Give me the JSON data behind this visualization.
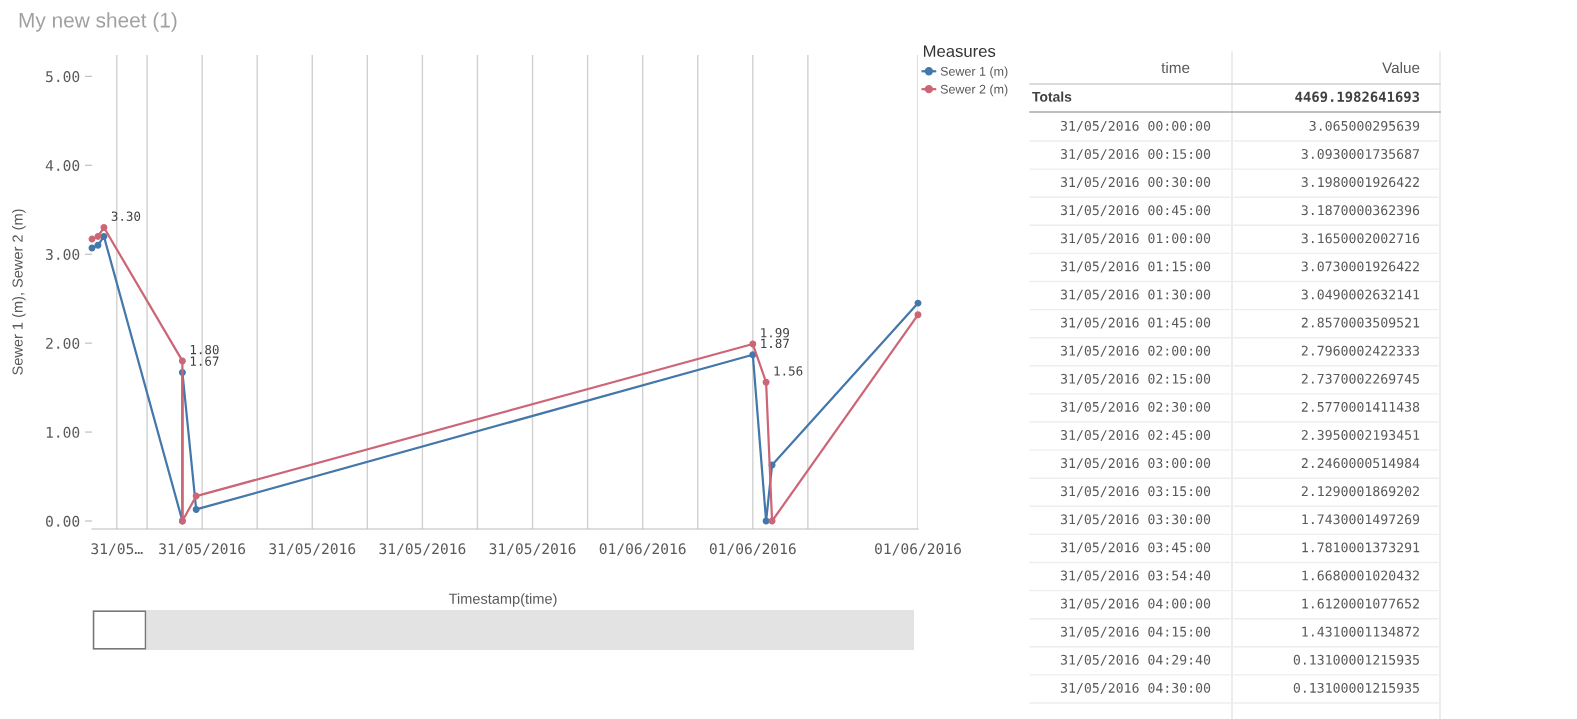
{
  "chart_data": [
    {
      "type": "line",
      "title": "My new sheet (1)",
      "xlabel": "Timestamp(time)",
      "ylabel": "Sewer 1 (m), Sewer 2 (m)",
      "legend_title": "Measures",
      "legend": "top right",
      "grid": "x",
      "marker": "circle",
      "line_style": "solid",
      "xlim": [
        "2016-05-31T04:00",
        "2016-06-01T10:00"
      ],
      "ylim": [
        -0.09,
        5.24
      ],
      "xticks": [
        {
          "value": "2016-05-31T04:54",
          "label": "31/05…"
        },
        {
          "value": "2016-05-31T06:00",
          "label": null
        },
        {
          "value": "2016-05-31T08:00",
          "label": "31/05/2016"
        },
        {
          "value": "2016-05-31T10:00",
          "label": null
        },
        {
          "value": "2016-05-31T12:00",
          "label": "31/05/2016"
        },
        {
          "value": "2016-05-31T14:00",
          "label": null
        },
        {
          "value": "2016-05-31T16:00",
          "label": "31/05/2016"
        },
        {
          "value": "2016-05-31T18:00",
          "label": null
        },
        {
          "value": "2016-05-31T20:00",
          "label": "31/05/2016"
        },
        {
          "value": "2016-05-31T22:00",
          "label": null
        },
        {
          "value": "2016-06-01T00:00",
          "label": "01/06/2016"
        },
        {
          "value": "2016-06-01T02:00",
          "label": null
        },
        {
          "value": "2016-06-01T04:00",
          "label": "01/06/2016"
        },
        {
          "value": "2016-06-01T06:00",
          "label": null
        },
        {
          "value": "2016-06-01T10:00",
          "label": "01/06/2016"
        }
      ],
      "yticks": [
        {
          "value": 0,
          "label": "0.00"
        },
        {
          "value": 1,
          "label": "1.00"
        },
        {
          "value": 2,
          "label": "2.00"
        },
        {
          "value": 3,
          "label": "3.00"
        },
        {
          "value": 4,
          "label": "4.00"
        },
        {
          "value": 5,
          "label": "5.00"
        }
      ],
      "series": [
        {
          "name": "Sewer 1 (m)",
          "color": "#4477aa",
          "x": [
            "2016-05-31T04:00",
            "2016-05-31T04:13",
            "2016-05-31T04:26",
            "2016-05-31T07:17",
            "2016-05-31T07:17",
            "2016-05-31T07:47",
            "2016-06-01T04:00",
            "2016-06-01T04:29",
            "2016-06-01T04:42",
            "2016-06-01T10:00"
          ],
          "values": [
            3.07,
            3.1,
            3.2,
            0,
            1.67,
            0.13,
            1.87,
            0,
            0.63,
            2.45
          ],
          "value_labels": [
            null,
            null,
            null,
            null,
            "1.67",
            null,
            "1.87",
            null,
            null,
            null
          ]
        },
        {
          "name": "Sewer 2 (m)",
          "color": "#cc6677",
          "x": [
            "2016-05-31T04:00",
            "2016-05-31T04:13",
            "2016-05-31T04:26",
            "2016-05-31T07:17",
            "2016-05-31T07:17",
            "2016-05-31T07:47",
            "2016-06-01T04:00",
            "2016-06-01T04:29",
            "2016-06-01T04:42",
            "2016-06-01T10:00"
          ],
          "values": [
            3.17,
            3.2,
            3.3,
            1.8,
            0,
            0.28,
            1.99,
            1.56,
            0,
            2.32
          ],
          "value_labels": [
            null,
            null,
            "3.30",
            "1.80",
            null,
            null,
            "1.99",
            "1.56",
            null,
            null
          ]
        }
      ]
    },
    {
      "type": "other",
      "annotations": [
        "time",
        "Value",
        "Totals",
        "4469.1982641693",
        "31/05/2016 00:00:00",
        "3.065000295639",
        "31/05/2016 00:15:00",
        "3.0930001735687",
        "31/05/2016 00:30:00",
        "3.1980001926422",
        "31/05/2016 00:45:00",
        "3.1870000362396",
        "31/05/2016 01:00:00",
        "3.1650002002716",
        "31/05/2016 01:15:00",
        "3.0730001926422",
        "31/05/2016 01:30:00",
        "3.0490002632141",
        "31/05/2016 01:45:00",
        "2.8570003509521",
        "31/05/2016 02:00:00",
        "2.7960002422333",
        "31/05/2016 02:15:00",
        "2.7370002269745",
        "31/05/2016 02:30:00",
        "2.5770001411438",
        "31/05/2016 02:45:00",
        "2.3950002193451",
        "31/05/2016 03:00:00",
        "2.2460000514984",
        "31/05/2016 03:15:00",
        "2.1290001869202",
        "31/05/2016 03:30:00",
        "1.7430001497269",
        "31/05/2016 03:45:00",
        "1.7810001373291",
        "31/05/2016 03:54:40",
        "1.6680001020432",
        "31/05/2016 04:00:00",
        "1.6120001077652",
        "31/05/2016 04:15:00",
        "1.4310001134872",
        "31/05/2016 04:29:40",
        "0.13100001215935",
        "31/05/2016 04:30:00",
        "0.13100001215935"
      ]
    }
  ]
}
